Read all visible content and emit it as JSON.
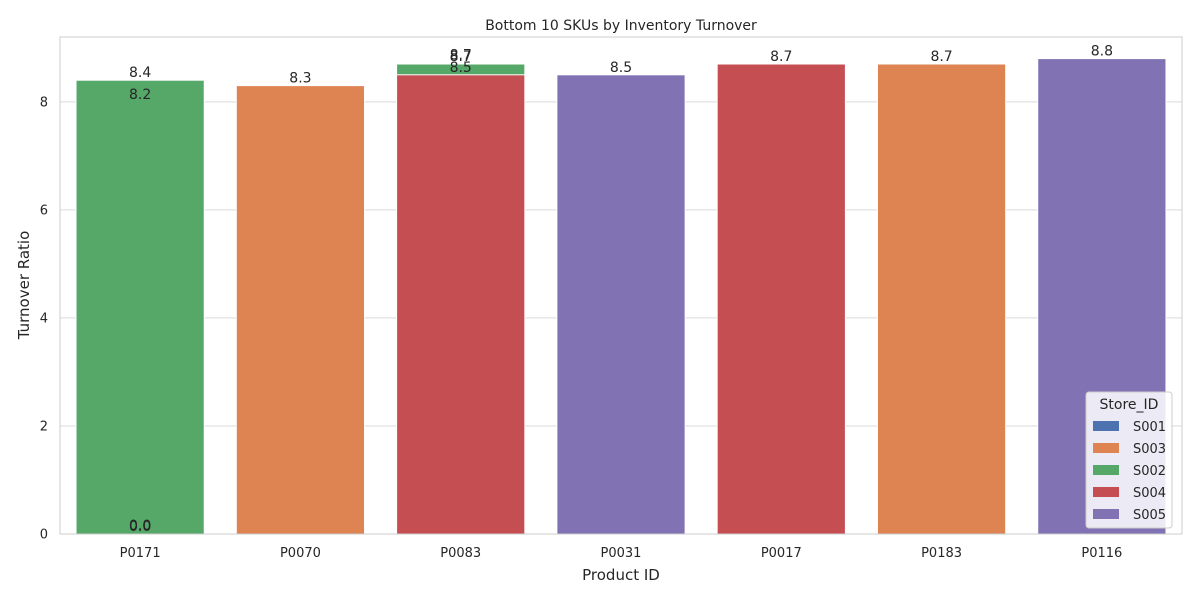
{
  "chart_data": {
    "type": "bar",
    "title": "Bottom 10 SKUs by Inventory Turnover",
    "xlabel": "Product ID",
    "ylabel": "Turnover Ratio",
    "ylim": [
      0,
      9.2
    ],
    "yticks": [
      0,
      2,
      4,
      6,
      8
    ],
    "grid": "horizontal",
    "categories": [
      "P0171",
      "P0070",
      "P0083",
      "P0031",
      "P0017",
      "P0183",
      "P0116"
    ],
    "series": [
      {
        "name": "S001",
        "color": "#4C72B0",
        "values": [
          0,
          null,
          null,
          null,
          null,
          null,
          null
        ]
      },
      {
        "name": "S003",
        "color": "#DD8452",
        "values": [
          0,
          8.3,
          null,
          null,
          null,
          8.7,
          null
        ]
      },
      {
        "name": "S002",
        "color": "#55A868",
        "values": [
          8.4,
          null,
          8.7,
          null,
          null,
          null,
          null
        ]
      },
      {
        "name": "S004",
        "color": "#C44E52",
        "values": [
          8.2,
          null,
          8.5,
          null,
          8.7,
          null,
          null
        ]
      },
      {
        "name": "S005",
        "color": "#8172B3",
        "values": [
          0,
          null,
          8.7,
          8.5,
          null,
          null,
          8.8
        ]
      }
    ],
    "bars": [
      {
        "category": "P0171",
        "store": "S002",
        "value": 8.4
      },
      {
        "category": "P0070",
        "store": "S003",
        "value": 8.3
      },
      {
        "category": "P0083",
        "store": "S002",
        "value": 8.7
      },
      {
        "category": "P0083",
        "store": "S004",
        "value": 8.5
      },
      {
        "category": "P0031",
        "store": "S005",
        "value": 8.5
      },
      {
        "category": "P0017",
        "store": "S004",
        "value": 8.7
      },
      {
        "category": "P0183",
        "store": "S003",
        "value": 8.7
      },
      {
        "category": "P0116",
        "store": "S005",
        "value": 8.8
      }
    ],
    "data_labels": [
      {
        "category": "P0171",
        "text": "8.4",
        "value": 8.4
      },
      {
        "category": "P0171",
        "text": "8.2",
        "value": 8.2
      },
      {
        "category": "P0171",
        "text": "0.0",
        "value": 0
      },
      {
        "category": "P0171",
        "text": "0.0",
        "value": 0
      },
      {
        "category": "P0171",
        "text": "0.0",
        "value": 0
      },
      {
        "category": "P0070",
        "text": "8.3",
        "value": 8.3
      },
      {
        "category": "P0083",
        "text": "8.7",
        "value": 8.7
      },
      {
        "category": "P0083",
        "text": "8.7",
        "value": 8.7
      },
      {
        "category": "P0083",
        "text": "8.5",
        "value": 8.5
      },
      {
        "category": "P0031",
        "text": "8.5",
        "value": 8.5
      },
      {
        "category": "P0017",
        "text": "8.7",
        "value": 8.7
      },
      {
        "category": "P0183",
        "text": "8.7",
        "value": 8.7
      },
      {
        "category": "P0116",
        "text": "8.8",
        "value": 8.8
      }
    ],
    "legend": {
      "title": "Store_ID",
      "placement": "bottom-right",
      "entries": [
        {
          "name": "S001",
          "color": "#4C72B0"
        },
        {
          "name": "S003",
          "color": "#DD8452"
        },
        {
          "name": "S002",
          "color": "#55A868"
        },
        {
          "name": "S004",
          "color": "#C44E52"
        },
        {
          "name": "S005",
          "color": "#8172B3"
        }
      ]
    }
  }
}
